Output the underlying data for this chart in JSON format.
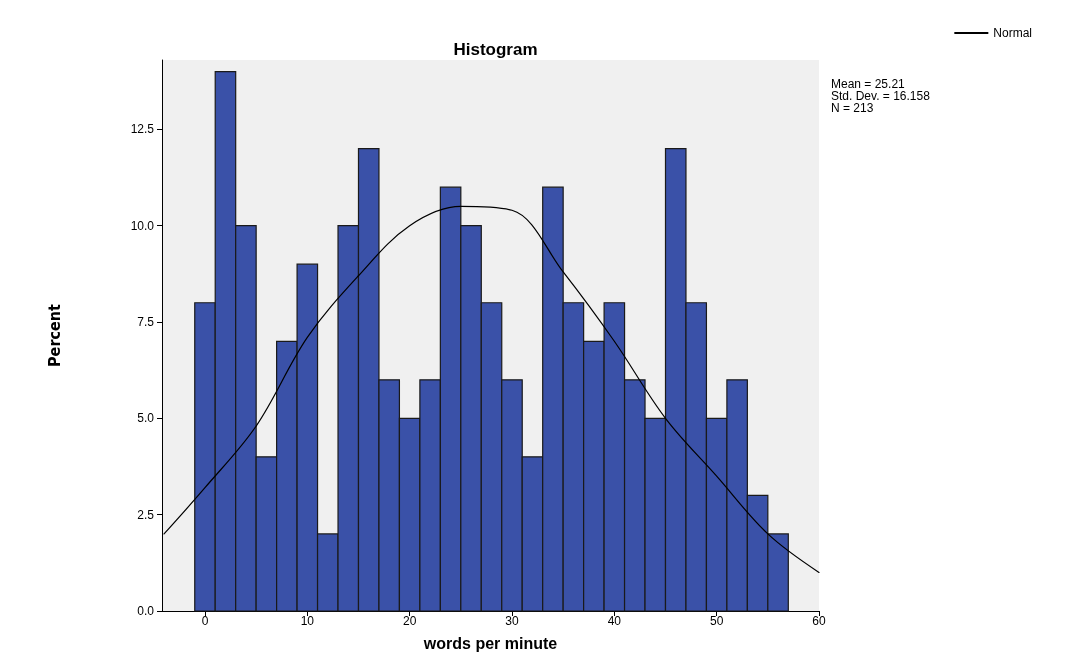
{
  "chart_data": {
    "type": "histogram",
    "title": "Histogram",
    "xlabel": "words per minute",
    "ylabel": "Percent",
    "series": [
      {
        "color": "#3a51a8",
        "bins": [
          -1,
          1,
          3,
          5,
          7,
          9,
          11,
          13,
          15,
          17,
          19,
          21,
          23,
          25,
          27,
          29,
          31,
          33,
          35,
          37,
          39,
          41,
          43,
          45,
          47,
          49,
          51,
          53,
          55,
          57
        ],
        "values": [
          8,
          14,
          10,
          4,
          7,
          9,
          2,
          10,
          12,
          6,
          5,
          6,
          11,
          10,
          8,
          6,
          4,
          11,
          8,
          7,
          8,
          6,
          5,
          12,
          8,
          5,
          6,
          3,
          2
        ]
      },
      {
        "type": "line",
        "name": "Normal",
        "color": "#000000",
        "x": [
          -4,
          0,
          5,
          10,
          15,
          20,
          25,
          30,
          35,
          40,
          45,
          50,
          55,
          60
        ],
        "values": [
          2.0,
          3.2,
          4.8,
          7.1,
          8.7,
          10.0,
          10.5,
          10.4,
          8.8,
          7.0,
          5.0,
          3.5,
          2.0,
          1.0
        ]
      }
    ],
    "xlim": [
      -4.2,
      60
    ],
    "xticks": [
      0,
      10,
      20,
      30,
      40,
      50,
      60
    ],
    "ylim": [
      0,
      14.3
    ],
    "yticks": [
      {
        "value": 0,
        "label": "0.0"
      },
      {
        "value": 2.5,
        "label": "2.5"
      },
      {
        "value": 5,
        "label": "5.0"
      },
      {
        "value": 7.5,
        "label": "7.5"
      },
      {
        "value": 10,
        "label": "10.0"
      },
      {
        "value": 12.5,
        "label": "12.5"
      }
    ],
    "annotations": [
      "Mean = 25.21\nStd. Dev. = 16.158\nN = 213"
    ],
    "marker": "none",
    "line_style": "solid",
    "grid": false,
    "legend": "top right"
  }
}
